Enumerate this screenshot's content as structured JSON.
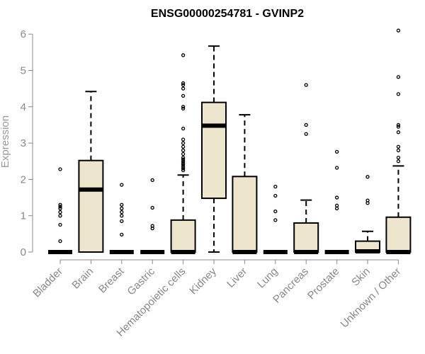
{
  "chart_data": {
    "type": "box",
    "title": "ENSG00000254781 - GVINP2",
    "ylabel": "Expression",
    "xlabel": "",
    "ylim": [
      0,
      6.2
    ],
    "yticks": [
      0,
      1,
      2,
      3,
      4,
      5,
      6
    ],
    "grid": false,
    "box_color": "#ede6cc",
    "outline_color": "#000000",
    "categories": [
      "Bladder",
      "Brain",
      "Breast",
      "Gastric",
      "Hematopoietic cells",
      "Kidney",
      "Liver",
      "Lung",
      "Pancreas",
      "Prostate",
      "Skin",
      "Unknown / Other"
    ],
    "boxes": [
      {
        "q1": 0,
        "median": 0,
        "q3": 0,
        "whisker_low": 0,
        "whisker_high": 0,
        "outliers": [
          0.3,
          0.75,
          1.0,
          1.1,
          1.2,
          1.25,
          1.3,
          2.28
        ]
      },
      {
        "q1": 0,
        "median": 1.72,
        "q3": 2.52,
        "whisker_low": 0,
        "whisker_high": 4.42,
        "outliers": []
      },
      {
        "q1": 0,
        "median": 0,
        "q3": 0,
        "whisker_low": 0,
        "whisker_high": 0,
        "outliers": [
          0.48,
          0.85,
          1.0,
          1.1,
          1.2,
          1.3,
          1.85
        ]
      },
      {
        "q1": 0,
        "median": 0,
        "q3": 0,
        "whisker_low": 0,
        "whisker_high": 0,
        "outliers": [
          0.65,
          0.72,
          1.22,
          1.98
        ]
      },
      {
        "q1": 0,
        "median": 0,
        "q3": 0.88,
        "whisker_low": 0,
        "whisker_high": 2.12,
        "outliers": [
          2.25,
          2.3,
          2.35,
          2.4,
          2.45,
          2.5,
          2.55,
          2.6,
          2.7,
          2.8,
          2.9,
          3.0,
          3.1,
          3.4,
          3.95,
          4.0,
          4.3,
          4.5,
          4.6,
          4.65,
          5.42
        ]
      },
      {
        "q1": 1.48,
        "median": 3.48,
        "q3": 4.12,
        "whisker_low": 0,
        "whisker_high": 5.67,
        "outliers": []
      },
      {
        "q1": 0,
        "median": 0,
        "q3": 2.08,
        "whisker_low": 0,
        "whisker_high": 3.78,
        "outliers": []
      },
      {
        "q1": 0,
        "median": 0,
        "q3": 0,
        "whisker_low": 0,
        "whisker_high": 0,
        "outliers": [
          0.88,
          1.12,
          1.55,
          1.8
        ]
      },
      {
        "q1": 0,
        "median": 0,
        "q3": 0.8,
        "whisker_low": 0,
        "whisker_high": 1.43,
        "outliers": [
          3.25,
          3.5,
          4.6
        ]
      },
      {
        "q1": 0,
        "median": 0,
        "q3": 0,
        "whisker_low": 0,
        "whisker_high": 0,
        "outliers": [
          1.2,
          1.28,
          1.5,
          2.32,
          2.76
        ]
      },
      {
        "q1": 0,
        "median": 0.02,
        "q3": 0.3,
        "whisker_low": 0,
        "whisker_high": 0.57,
        "outliers": [
          1.35,
          1.42,
          2.07
        ]
      },
      {
        "q1": 0,
        "median": 0,
        "q3": 0.96,
        "whisker_low": 0,
        "whisker_high": 2.37,
        "outliers": [
          2.5,
          2.6,
          2.8,
          2.9,
          3.3,
          3.45,
          3.5,
          4.35,
          4.82,
          6.1
        ]
      }
    ]
  }
}
